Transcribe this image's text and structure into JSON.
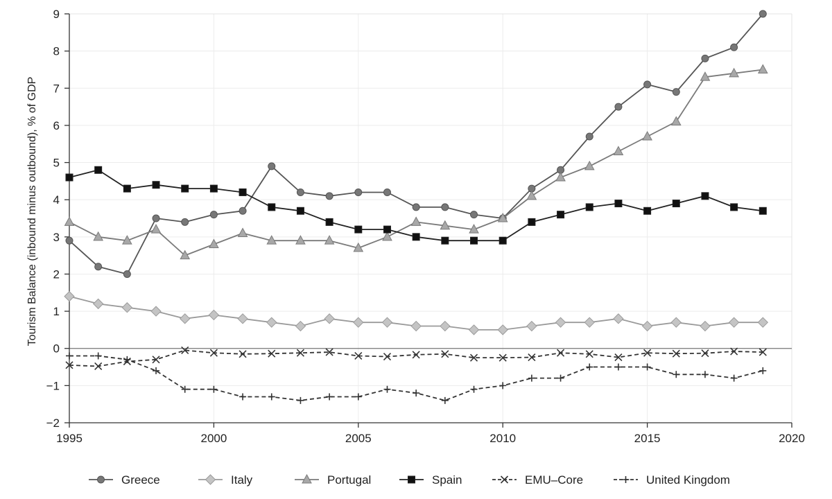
{
  "chart_data": {
    "type": "line",
    "title": "",
    "xlabel": "",
    "ylabel": "Tourism Balance (inbound minus outbound), % of GDP",
    "xlim": [
      1995,
      2020
    ],
    "ylim": [
      -2,
      9
    ],
    "xticks": [
      "1995",
      "2000",
      "2005",
      "2010",
      "2015",
      "2020"
    ],
    "yticks": [
      "−2",
      "−1",
      "0",
      "1",
      "2",
      "3",
      "4",
      "5",
      "6",
      "7",
      "8",
      "9"
    ],
    "grid": true,
    "legend_position": "bottom",
    "x": [
      1995,
      1996,
      1997,
      1998,
      1999,
      2000,
      2001,
      2002,
      2003,
      2004,
      2005,
      2006,
      2007,
      2008,
      2009,
      2010,
      2011,
      2012,
      2013,
      2014,
      2015,
      2016,
      2017,
      2018,
      2019
    ],
    "series": [
      {
        "name": "Greece",
        "marker": "circle",
        "dash": "solid",
        "color": "#555555",
        "fill": "#777777",
        "values": [
          2.9,
          2.2,
          2.0,
          3.5,
          3.4,
          3.6,
          3.7,
          4.9,
          4.2,
          4.1,
          4.2,
          4.2,
          3.8,
          3.8,
          3.6,
          3.5,
          4.3,
          4.8,
          5.7,
          6.5,
          7.1,
          6.9,
          7.8,
          8.1,
          9.0
        ]
      },
      {
        "name": "Italy",
        "marker": "diamond",
        "dash": "solid",
        "color": "#9a9a9a",
        "fill": "#c4c4c4",
        "values": [
          1.4,
          1.2,
          1.1,
          1.0,
          0.8,
          0.9,
          0.8,
          0.7,
          0.6,
          0.8,
          0.7,
          0.7,
          0.6,
          0.6,
          0.5,
          0.5,
          0.6,
          0.7,
          0.7,
          0.8,
          0.6,
          0.7,
          0.6,
          0.7,
          0.7
        ]
      },
      {
        "name": "Portugal",
        "marker": "triangle",
        "dash": "solid",
        "color": "#7a7a7a",
        "fill": "#a8a8a8",
        "values": [
          3.4,
          3.0,
          2.9,
          3.2,
          2.5,
          2.8,
          3.1,
          2.9,
          2.9,
          2.9,
          2.7,
          3.0,
          3.4,
          3.3,
          3.2,
          3.5,
          4.1,
          4.6,
          4.9,
          5.3,
          5.7,
          6.1,
          7.3,
          7.4,
          7.5
        ]
      },
      {
        "name": "Spain",
        "marker": "square",
        "dash": "solid",
        "color": "#222222",
        "fill": "#111111",
        "values": [
          4.6,
          4.8,
          4.3,
          4.4,
          4.3,
          4.3,
          4.2,
          3.8,
          3.7,
          3.4,
          3.2,
          3.2,
          3.0,
          2.9,
          2.9,
          2.9,
          3.4,
          3.6,
          3.8,
          3.9,
          3.7,
          3.9,
          4.1,
          3.8,
          3.7
        ]
      },
      {
        "name": "EMU–Core",
        "marker": "x",
        "dash": "dashed",
        "color": "#333333",
        "fill": "#333333",
        "values": [
          -0.45,
          -0.48,
          -0.35,
          -0.3,
          -0.05,
          -0.12,
          -0.15,
          -0.14,
          -0.12,
          -0.1,
          -0.2,
          -0.22,
          -0.17,
          -0.15,
          -0.25,
          -0.25,
          -0.24,
          -0.12,
          -0.15,
          -0.24,
          -0.12,
          -0.14,
          -0.13,
          -0.08,
          -0.1
        ]
      },
      {
        "name": "United Kingdom",
        "marker": "plus",
        "dash": "dashed",
        "color": "#333333",
        "fill": "#333333",
        "values": [
          -0.2,
          -0.2,
          -0.3,
          -0.6,
          -1.1,
          -1.1,
          -1.3,
          -1.3,
          -1.4,
          -1.3,
          -1.3,
          -1.1,
          -1.2,
          -1.4,
          -1.1,
          -1.0,
          -0.8,
          -0.8,
          -0.5,
          -0.5,
          -0.5,
          -0.7,
          -0.7,
          -0.8,
          -0.6
        ]
      }
    ]
  }
}
